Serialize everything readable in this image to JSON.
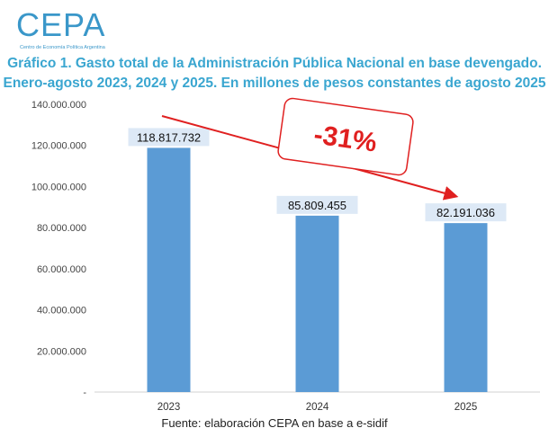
{
  "logo": {
    "text": "CEPA",
    "subtitle": "Centro de Economía Política Argentina"
  },
  "title": {
    "line1": "Gráfico 1. Gasto total de la Administración Pública Nacional en base devengado.",
    "line2": "Enero-agosto 2023, 2024 y 2025. En millones de pesos constantes de agosto 2025"
  },
  "source": "Fuente: elaboración CEPA en base a e-sidif",
  "colors": {
    "bar": "#5b9bd5",
    "title": "#3aa6d0",
    "arrow": "#e02020",
    "label_bg": "#dde9f6"
  },
  "chart_data": {
    "type": "bar",
    "categories": [
      "2023",
      "2024",
      "2025"
    ],
    "values": [
      118817732,
      85809455,
      82191036
    ],
    "data_labels": [
      "118.817.732",
      "85.809.455",
      "82.191.036"
    ],
    "ylim": [
      0,
      140000000
    ],
    "y_ticks": [
      0,
      20000000,
      40000000,
      60000000,
      80000000,
      100000000,
      120000000,
      140000000
    ],
    "y_tick_labels": [
      "-",
      "20.000.000",
      "40.000.000",
      "60.000.000",
      "80.000.000",
      "100.000.000",
      "120.000.000",
      "140.000.000"
    ],
    "grid": false,
    "annotation": "-31%"
  }
}
